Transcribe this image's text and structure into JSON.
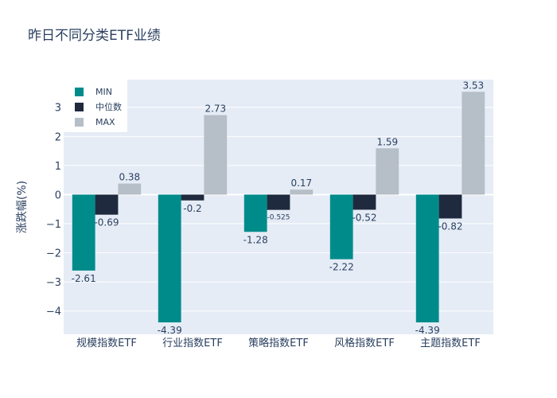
{
  "chart_data": {
    "type": "bar",
    "title": "昨日不同分类ETF业绩",
    "ylabel": "涨跌幅(%)",
    "xlabel": "",
    "categories": [
      "规模指数ETF",
      "行业指数ETF",
      "策略指数ETF",
      "风格指数ETF",
      "主题指数ETF"
    ],
    "series": [
      {
        "name": "MIN",
        "color": "#008b8b",
        "values": [
          -2.61,
          -4.39,
          -1.28,
          -2.22,
          -4.39
        ],
        "labels": [
          "-2.61",
          "-4.39",
          "-1.28",
          "-2.22",
          "-4.39"
        ]
      },
      {
        "name": "中位数",
        "color": "#1f2a3e",
        "values": [
          -0.69,
          -0.2,
          -0.525,
          -0.52,
          -0.82
        ],
        "labels": [
          "-0.69",
          "-0.2",
          "-0.525",
          "-0.52",
          "-0.82"
        ]
      },
      {
        "name": "MAX",
        "color": "#b6bec7",
        "values": [
          0.38,
          2.73,
          0.17,
          1.59,
          3.53
        ],
        "labels": [
          "0.38",
          "2.73",
          "0.17",
          "1.59",
          "3.53"
        ]
      }
    ],
    "yticks": [
      -4,
      -3,
      -2,
      -1,
      0,
      1,
      2,
      3
    ],
    "ytick_labels": [
      "−4",
      "−3",
      "−2",
      "−1",
      "0",
      "1",
      "2",
      "3"
    ],
    "ylim": [
      -4.8,
      3.95
    ],
    "legend_position": "top-left",
    "grid": true,
    "colors": {
      "plot_bg": "#e5ecf6",
      "grid": "#ffffff",
      "text": "#2a3f5f"
    }
  }
}
